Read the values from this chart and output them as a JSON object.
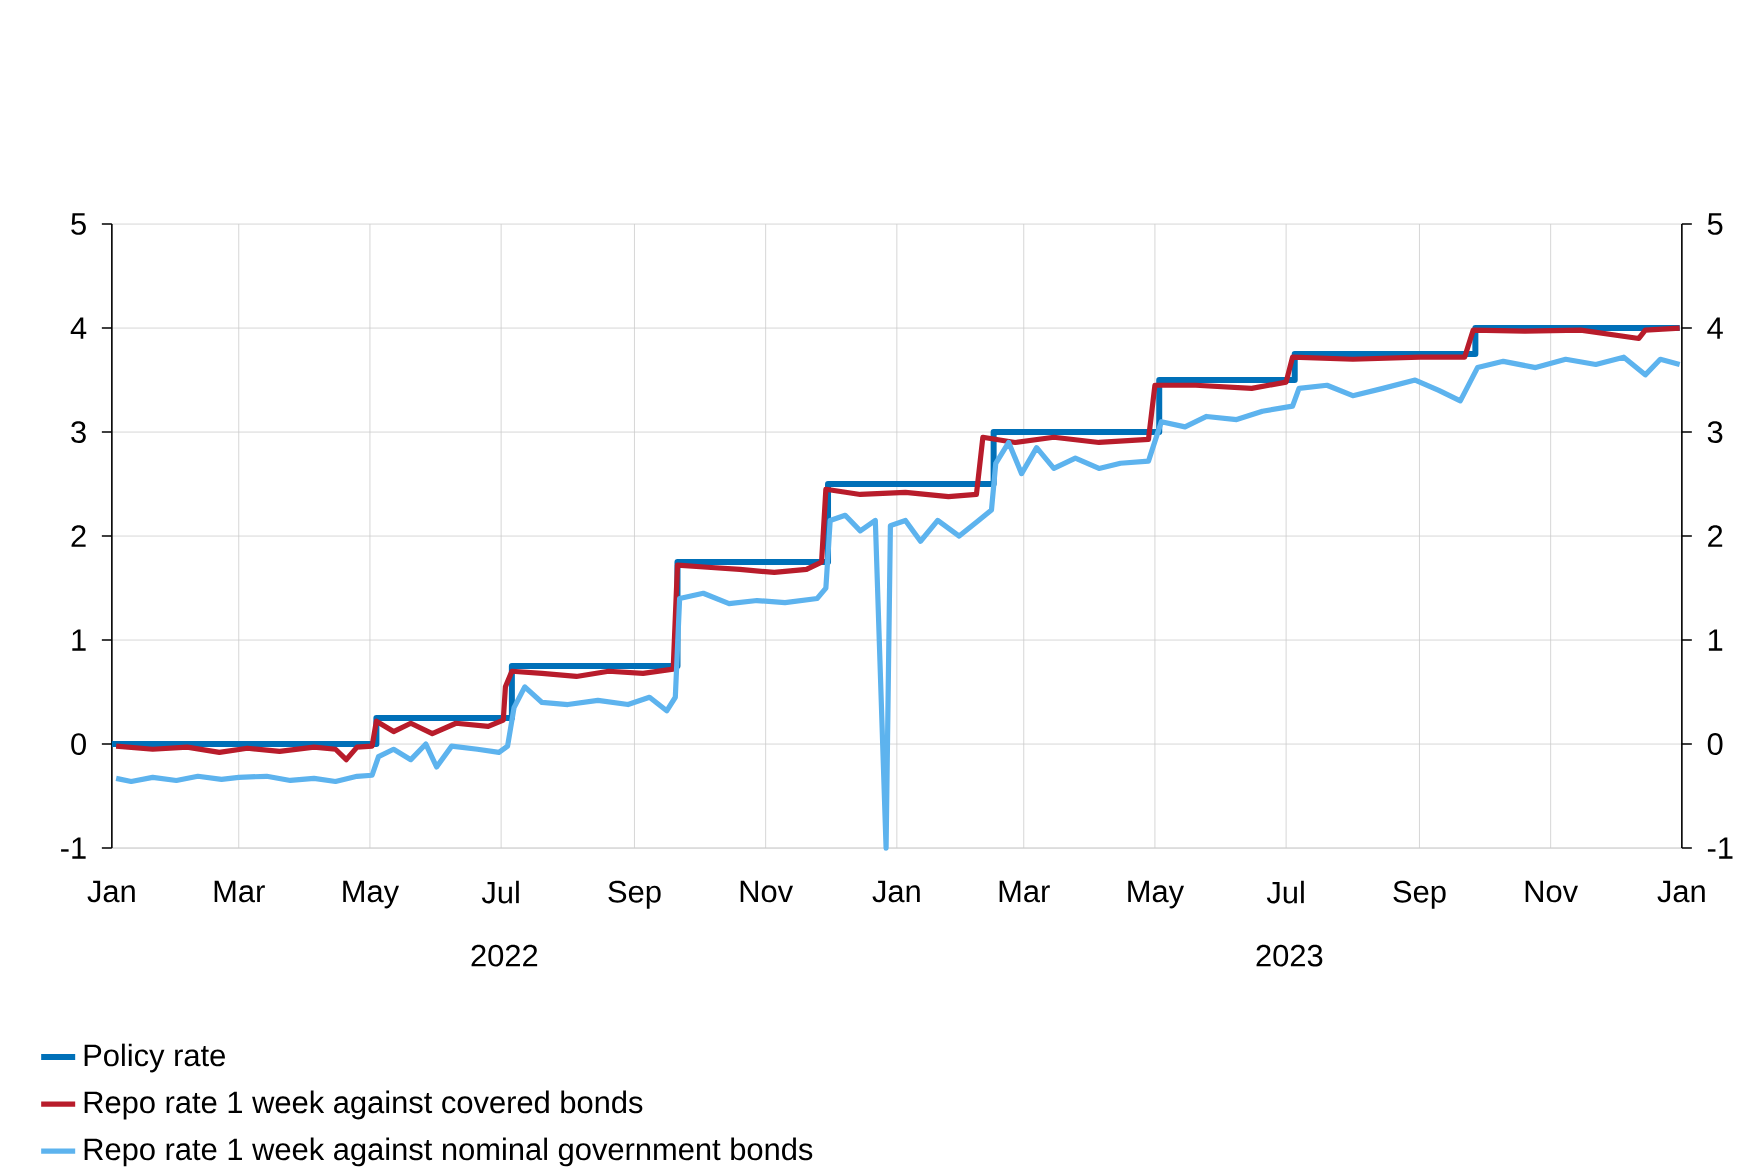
{
  "chart_data": {
    "type": "line",
    "xlim": [
      "2022-01-01",
      "2024-01-01"
    ],
    "xticks": [
      {
        "value": "2022-01-01",
        "label": "Jan"
      },
      {
        "value": "2022-03-01",
        "label": "Mar"
      },
      {
        "value": "2022-05-01",
        "label": "May"
      },
      {
        "value": "2022-07-01",
        "label": "Jul"
      },
      {
        "value": "2022-09-01",
        "label": "Sep"
      },
      {
        "value": "2022-11-01",
        "label": "Nov"
      },
      {
        "value": "2023-01-01",
        "label": "Jan"
      },
      {
        "value": "2023-03-01",
        "label": "Mar"
      },
      {
        "value": "2023-05-01",
        "label": "May"
      },
      {
        "value": "2023-07-01",
        "label": "Jul"
      },
      {
        "value": "2023-09-01",
        "label": "Sep"
      },
      {
        "value": "2023-11-01",
        "label": "Nov"
      },
      {
        "value": "2024-01-01",
        "label": "Jan"
      }
    ],
    "ylim": [
      -1,
      5
    ],
    "yticks": [
      -1,
      0,
      1,
      2,
      3,
      4,
      5
    ],
    "y2lim": [
      -1,
      5
    ],
    "y2ticks": [
      -1,
      0,
      1,
      2,
      3,
      4,
      5
    ],
    "grid": true,
    "legend": "bottom",
    "annotations": [
      "2022",
      "2023"
    ],
    "series": [
      {
        "name": "Policy rate",
        "color": "#0070b8",
        "type": "step",
        "x": [
          "2022-01-01",
          "2022-05-04",
          "2022-07-06",
          "2022-09-21",
          "2022-11-30",
          "2023-02-15",
          "2023-05-03",
          "2023-07-05",
          "2023-09-27",
          "2023-12-31"
        ],
        "values": [
          0,
          0.25,
          0.75,
          1.75,
          2.5,
          3.0,
          3.5,
          3.75,
          4.0,
          4.0
        ]
      },
      {
        "name": "Repo rate 1 week against covered bonds",
        "color": "#b81c2b",
        "x": [
          "2022-01-03",
          "2022-01-20",
          "2022-02-05",
          "2022-02-20",
          "2022-03-05",
          "2022-03-20",
          "2022-04-05",
          "2022-04-15",
          "2022-04-20",
          "2022-04-25",
          "2022-05-02",
          "2022-05-04",
          "2022-05-12",
          "2022-05-20",
          "2022-05-30",
          "2022-06-10",
          "2022-06-25",
          "2022-07-02",
          "2022-07-03",
          "2022-07-06",
          "2022-07-20",
          "2022-08-05",
          "2022-08-20",
          "2022-09-05",
          "2022-09-19",
          "2022-09-21",
          "2022-10-05",
          "2022-10-20",
          "2022-11-05",
          "2022-11-20",
          "2022-11-27",
          "2022-11-29",
          "2022-12-15",
          "2023-01-05",
          "2023-01-25",
          "2023-02-07",
          "2023-02-10",
          "2023-02-25",
          "2023-03-15",
          "2023-04-05",
          "2023-04-28",
          "2023-05-01",
          "2023-05-20",
          "2023-06-15",
          "2023-07-01",
          "2023-07-04",
          "2023-08-01",
          "2023-09-01",
          "2023-09-22",
          "2023-09-26",
          "2023-10-20",
          "2023-11-15",
          "2023-12-12",
          "2023-12-15",
          "2023-12-31"
        ],
        "values": [
          -0.02,
          -0.05,
          -0.03,
          -0.08,
          -0.04,
          -0.07,
          -0.03,
          -0.05,
          -0.15,
          -0.03,
          -0.02,
          0.22,
          0.12,
          0.2,
          0.1,
          0.2,
          0.17,
          0.23,
          0.55,
          0.7,
          0.68,
          0.65,
          0.7,
          0.68,
          0.72,
          1.72,
          1.7,
          1.68,
          1.65,
          1.68,
          1.75,
          2.45,
          2.4,
          2.42,
          2.38,
          2.4,
          2.95,
          2.9,
          2.95,
          2.9,
          2.93,
          3.45,
          3.45,
          3.42,
          3.48,
          3.72,
          3.7,
          3.72,
          3.72,
          3.98,
          3.97,
          3.98,
          3.9,
          3.98,
          4.0
        ]
      },
      {
        "name": "Repo rate 1 week against nominal government bonds",
        "color": "#5db3ee",
        "x": [
          "2022-01-03",
          "2022-01-10",
          "2022-01-20",
          "2022-01-31",
          "2022-02-10",
          "2022-02-21",
          "2022-03-01",
          "2022-03-14",
          "2022-03-25",
          "2022-04-05",
          "2022-04-15",
          "2022-04-25",
          "2022-05-02",
          "2022-05-05",
          "2022-05-12",
          "2022-05-20",
          "2022-05-27",
          "2022-06-01",
          "2022-06-08",
          "2022-06-20",
          "2022-06-30",
          "2022-07-04",
          "2022-07-07",
          "2022-07-12",
          "2022-07-20",
          "2022-08-01",
          "2022-08-15",
          "2022-08-29",
          "2022-09-08",
          "2022-09-16",
          "2022-09-20",
          "2022-09-22",
          "2022-10-03",
          "2022-10-15",
          "2022-10-28",
          "2022-11-10",
          "2022-11-25",
          "2022-11-29",
          "2022-12-01",
          "2022-12-08",
          "2022-12-15",
          "2022-12-22",
          "2022-12-27",
          "2022-12-29",
          "2023-01-05",
          "2023-01-12",
          "2023-01-20",
          "2023-01-30",
          "2023-02-08",
          "2023-02-14",
          "2023-02-16",
          "2023-02-22",
          "2023-02-28",
          "2023-03-07",
          "2023-03-15",
          "2023-03-25",
          "2023-04-05",
          "2023-04-15",
          "2023-04-28",
          "2023-05-04",
          "2023-05-15",
          "2023-05-25",
          "2023-06-08",
          "2023-06-20",
          "2023-07-04",
          "2023-07-07",
          "2023-07-20",
          "2023-08-01",
          "2023-08-15",
          "2023-08-30",
          "2023-09-10",
          "2023-09-20",
          "2023-09-28",
          "2023-10-10",
          "2023-10-25",
          "2023-11-08",
          "2023-11-22",
          "2023-12-05",
          "2023-12-15",
          "2023-12-22",
          "2023-12-31"
        ],
        "values": [
          -0.33,
          -0.36,
          -0.32,
          -0.35,
          -0.31,
          -0.34,
          -0.32,
          -0.31,
          -0.35,
          -0.33,
          -0.36,
          -0.31,
          -0.3,
          -0.12,
          -0.05,
          -0.15,
          0.0,
          -0.22,
          -0.02,
          -0.05,
          -0.08,
          -0.02,
          0.35,
          0.55,
          0.4,
          0.38,
          0.42,
          0.38,
          0.45,
          0.32,
          0.45,
          1.4,
          1.45,
          1.35,
          1.38,
          1.36,
          1.4,
          1.5,
          2.15,
          2.2,
          2.05,
          2.15,
          -1,
          2.1,
          2.15,
          1.95,
          2.15,
          2.0,
          2.15,
          2.25,
          2.7,
          2.9,
          2.6,
          2.85,
          2.65,
          2.75,
          2.65,
          2.7,
          2.72,
          3.1,
          3.05,
          3.15,
          3.12,
          3.2,
          3.25,
          3.42,
          3.45,
          3.35,
          3.42,
          3.5,
          3.4,
          3.3,
          3.62,
          3.68,
          3.62,
          3.7,
          3.65,
          3.72,
          3.55,
          3.7,
          3.65
        ]
      }
    ]
  }
}
